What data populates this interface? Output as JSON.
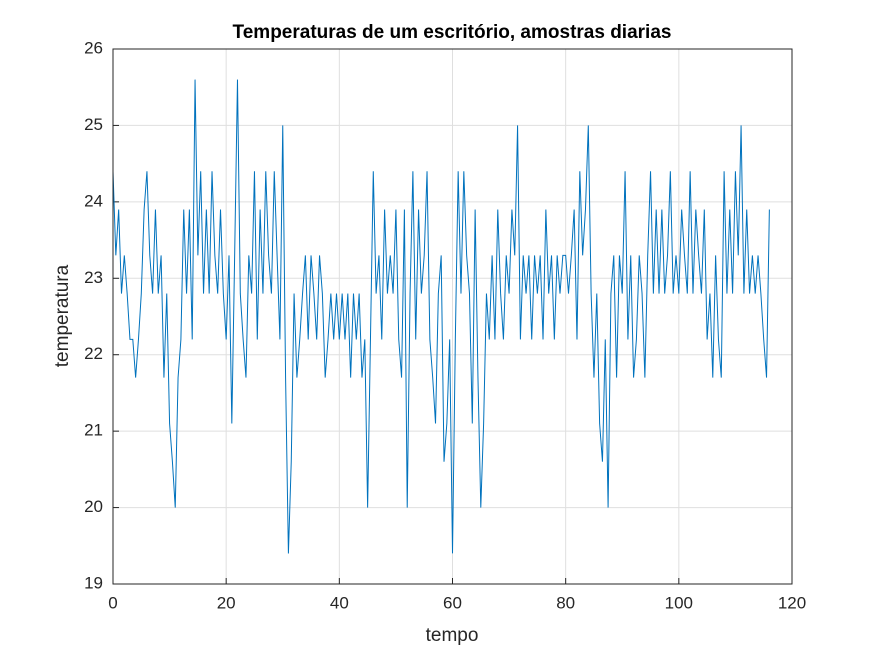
{
  "chart_data": {
    "type": "line",
    "title": "Temperaturas de um escritório, amostras diarias",
    "x_label": "tempo",
    "y_label": "temperatura",
    "x": [
      0,
      0.5,
      1,
      1.5,
      2,
      2.5,
      3,
      3.5,
      4,
      4.5,
      5,
      5.5,
      6,
      6.5,
      7,
      7.5,
      8,
      8.5,
      9,
      9.5,
      10,
      10.5,
      11,
      11.5,
      12,
      12.5,
      13,
      13.5,
      14,
      14.5,
      15,
      15.5,
      16,
      16.5,
      17,
      17.5,
      18,
      18.5,
      19,
      19.5,
      20,
      20.5,
      21,
      21.5,
      22,
      22.5,
      23,
      23.5,
      24,
      24.5,
      25,
      25.5,
      26,
      26.5,
      27,
      27.5,
      28,
      28.5,
      29,
      29.5,
      30,
      30.5,
      31,
      31.5,
      32,
      32.5,
      33,
      33.5,
      34,
      34.5,
      35,
      35.5,
      36,
      36.5,
      37,
      37.5,
      38,
      38.5,
      39,
      39.5,
      40,
      40.5,
      41,
      41.5,
      42,
      42.5,
      43,
      43.5,
      44,
      44.5,
      45,
      45.5,
      46,
      46.5,
      47,
      47.5,
      48,
      48.5,
      49,
      49.5,
      50,
      50.5,
      51,
      51.5,
      52,
      52.5,
      53,
      53.5,
      54,
      54.5,
      55,
      55.5,
      56,
      56.5,
      57,
      57.5,
      58,
      58.5,
      59,
      59.5,
      60,
      60.5,
      61,
      61.5,
      62,
      62.5,
      63,
      63.5,
      64,
      64.5,
      65,
      65.5,
      66,
      66.5,
      67,
      67.5,
      68,
      68.5,
      69,
      69.5,
      70,
      70.5,
      71,
      71.5,
      72,
      72.5,
      73,
      73.5,
      74,
      74.5,
      75,
      75.5,
      76,
      76.5,
      77,
      77.5,
      78,
      78.5,
      79,
      79.5,
      80,
      80.5,
      81,
      81.5,
      82,
      82.5,
      83,
      83.5,
      84,
      84.5,
      85,
      85.5,
      86,
      86.5,
      87,
      87.5,
      88,
      88.5,
      89,
      89.5,
      90,
      90.5,
      91,
      91.5,
      92,
      92.5,
      93,
      93.5,
      94,
      94.5,
      95,
      95.5,
      96,
      96.5,
      97,
      97.5,
      98,
      98.5,
      99,
      99.5,
      100,
      100.5,
      101,
      101.5,
      102,
      102.5,
      103,
      103.5,
      104,
      104.5,
      105,
      105.5,
      106,
      106.5,
      107,
      107.5,
      108,
      108.5,
      109,
      109.5,
      110,
      110.5,
      111,
      111.5,
      112,
      112.5,
      113,
      113.5,
      114,
      114.5,
      115,
      115.5,
      116
    ],
    "series": [
      {
        "name": "temperatura",
        "color": "#0072bd",
        "values": [
          24.4,
          23.3,
          23.9,
          22.8,
          23.3,
          22.8,
          22.2,
          22.2,
          21.7,
          22.2,
          22.8,
          23.9,
          24.4,
          23.3,
          22.8,
          23.9,
          22.8,
          23.3,
          21.7,
          22.8,
          21.1,
          20.6,
          20,
          21.7,
          22.2,
          23.9,
          22.8,
          23.9,
          22.2,
          25.6,
          23.3,
          24.4,
          22.8,
          23.9,
          22.8,
          24.4,
          23.3,
          22.8,
          23.9,
          22.8,
          22.2,
          23.3,
          21.1,
          23.3,
          25.6,
          22.8,
          22.2,
          21.7,
          23.3,
          22.8,
          24.4,
          22.2,
          23.9,
          22.8,
          24.4,
          23.3,
          22.8,
          24.4,
          23.3,
          22.2,
          25,
          21.7,
          19.4,
          20.6,
          22.8,
          21.7,
          22.2,
          22.8,
          23.3,
          22.2,
          23.3,
          22.8,
          22.2,
          23.3,
          22.8,
          21.7,
          22.2,
          22.8,
          22.2,
          22.8,
          22.2,
          22.8,
          22.2,
          22.8,
          21.7,
          22.8,
          22.2,
          22.8,
          21.7,
          22.2,
          20,
          22.2,
          24.4,
          22.8,
          23.3,
          22.2,
          23.9,
          22.8,
          23.3,
          22.8,
          23.9,
          22.2,
          21.7,
          23.9,
          20,
          22.8,
          24.4,
          22.2,
          23.9,
          22.8,
          23.3,
          24.4,
          22.2,
          21.7,
          21.1,
          22.8,
          23.3,
          20.6,
          21.1,
          22.2,
          19.4,
          22.2,
          24.4,
          22.8,
          24.4,
          23.3,
          22.8,
          21.1,
          23.9,
          21.7,
          20,
          21.1,
          22.8,
          22.2,
          23.3,
          22.2,
          23.9,
          22.8,
          22.2,
          23.3,
          22.8,
          23.9,
          23.3,
          25,
          22.2,
          23.3,
          22.8,
          23.3,
          22.2,
          23.3,
          22.8,
          23.3,
          22.2,
          23.9,
          22.8,
          23.3,
          22.2,
          23.3,
          22.8,
          23.3,
          23.3,
          22.8,
          23.3,
          23.9,
          22.2,
          24.4,
          23.3,
          23.9,
          25,
          22.8,
          21.7,
          22.8,
          21.1,
          20.6,
          22.2,
          20,
          22.8,
          23.3,
          21.7,
          23.3,
          22.8,
          24.4,
          22.2,
          23.3,
          21.7,
          22.2,
          23.3,
          22.8,
          21.7,
          23.3,
          24.4,
          22.8,
          23.9,
          22.8,
          23.9,
          22.8,
          23.3,
          24.4,
          22.8,
          23.3,
          22.8,
          23.9,
          23.3,
          22.8,
          24.4,
          22.8,
          23.9,
          23.3,
          22.8,
          23.9,
          22.2,
          22.8,
          21.7,
          23.3,
          22.2,
          21.7,
          24.4,
          22.8,
          23.9,
          22.8,
          24.4,
          23.3,
          25,
          22.8,
          23.9,
          22.8,
          23.3,
          22.8,
          23.3,
          22.8,
          22.2,
          21.7,
          23.9
        ]
      }
    ],
    "xlim": [
      0,
      120
    ],
    "xticks": [
      0,
      20,
      40,
      60,
      80,
      100,
      120
    ],
    "ylim": [
      19,
      26
    ],
    "yticks": [
      19,
      20,
      21,
      22,
      23,
      24,
      25,
      26
    ],
    "grid": true
  }
}
